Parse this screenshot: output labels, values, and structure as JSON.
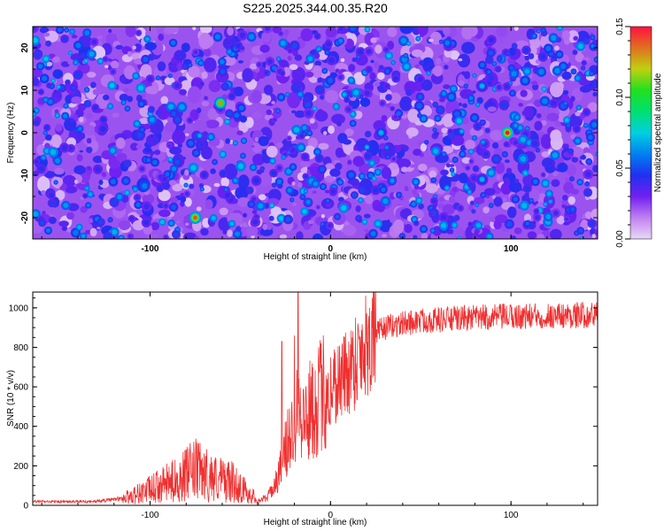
{
  "title": "S225.2025.344.00.35.R20",
  "colorbar": {
    "label": "Normalized spectral amplitude",
    "ticks": [
      "0.00",
      "0.05",
      "0.10",
      "0.15"
    ],
    "range": [
      0,
      0.15
    ],
    "stops": [
      "#e8d8f8",
      "#c080f0",
      "#7020f0",
      "#2030f0",
      "#0080f0",
      "#00d0e0",
      "#00e070",
      "#20e020",
      "#c0d010",
      "#e07020",
      "#ff1040"
    ]
  },
  "chart_data": [
    {
      "type": "heatmap",
      "title": "S225.2025.344.00.35.R20",
      "xlabel": "Height of straight line (km)",
      "ylabel": "Frequency (Hz)",
      "xlim": [
        -165,
        148
      ],
      "ylim": [
        -25,
        25
      ],
      "xticks": [
        "-100",
        "0",
        "100"
      ],
      "xtick_values": [
        -100,
        0,
        100
      ],
      "yticks": [
        "20",
        "10",
        "0",
        "-10",
        "-20"
      ],
      "ytick_values": [
        20,
        10,
        0,
        -10,
        -20
      ],
      "zlabel": "Normalized spectral amplitude",
      "zlim": [
        0,
        0.15
      ],
      "description_value_range": "mostly 0.02-0.07, peaks near 0.15 at (-75,-20), (-60,7), (98,0)",
      "peaks": [
        {
          "x": -75,
          "y": -20,
          "z": 0.14
        },
        {
          "x": -61,
          "y": 7,
          "z": 0.13
        },
        {
          "x": 98,
          "y": 0,
          "z": 0.15
        },
        {
          "x": 28,
          "y": 0,
          "z": 0.07
        },
        {
          "x": 84,
          "y": 11,
          "z": 0.07
        },
        {
          "x": 84,
          "y": -11,
          "z": 0.07
        }
      ]
    },
    {
      "type": "line",
      "xlabel": "Height of straight line (km)",
      "ylabel": "SNR (10 * v/v)",
      "xlim": [
        -165,
        148
      ],
      "ylim": [
        0,
        1080
      ],
      "xticks": [
        "-100",
        "0",
        "100"
      ],
      "xtick_values": [
        -100,
        0,
        100
      ],
      "yticks": [
        "0",
        "200",
        "400",
        "600",
        "800",
        "1000"
      ],
      "ytick_values": [
        0,
        200,
        400,
        600,
        800,
        1000
      ],
      "series": [
        {
          "name": "SNR",
          "color": "#f03030",
          "x": [
            -165,
            -150,
            -130,
            -115,
            -100,
            -85,
            -75,
            -65,
            -55,
            -45,
            -40,
            -35,
            -30,
            -25,
            -20,
            -18,
            -15,
            -10,
            -5,
            0,
            5,
            10,
            15,
            20,
            25,
            30,
            40,
            50,
            60,
            80,
            100,
            120,
            148
          ],
          "values": [
            20,
            18,
            20,
            35,
            80,
            130,
            180,
            140,
            120,
            60,
            25,
            40,
            120,
            280,
            420,
            600,
            420,
            500,
            560,
            600,
            640,
            680,
            760,
            830,
            870,
            900,
            920,
            935,
            940,
            950,
            955,
            960,
            965
          ],
          "spikes": [
            {
              "x": -18,
              "value": 1080
            },
            {
              "x": -20,
              "value": 860
            },
            {
              "x": -27,
              "value": 830
            },
            {
              "x": 12,
              "value": 850
            }
          ]
        }
      ]
    }
  ]
}
